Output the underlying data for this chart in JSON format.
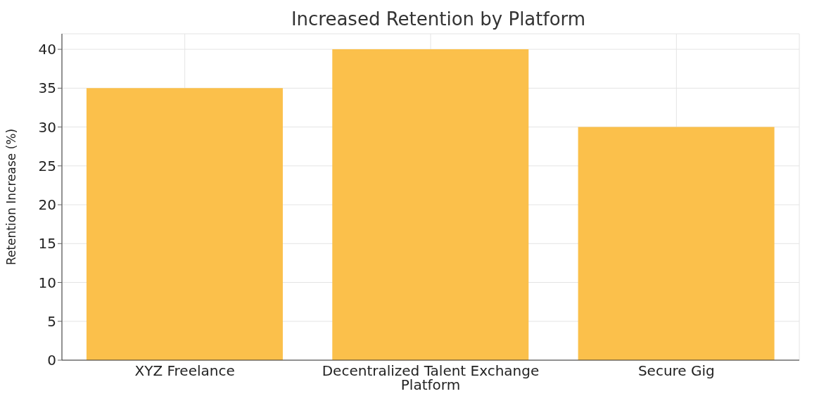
{
  "chart_data": {
    "type": "bar",
    "title": "Increased Retention by Platform",
    "xlabel": "Platform",
    "ylabel": "Retention Increase (%)",
    "categories": [
      "XYZ Freelance",
      "Decentralized Talent Exchange",
      "Secure Gig"
    ],
    "values": [
      35,
      40,
      30
    ],
    "color": "#fbc04b",
    "ylim": [
      0,
      42
    ],
    "yticks": [
      0,
      5,
      10,
      15,
      20,
      25,
      30,
      35,
      40
    ],
    "grid": true
  }
}
